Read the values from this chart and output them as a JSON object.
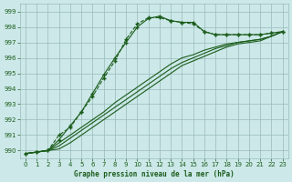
{
  "xlabel": "Graphe pression niveau de la mer (hPa)",
  "ylim": [
    989.5,
    999.5
  ],
  "xlim": [
    -0.5,
    23.5
  ],
  "yticks": [
    990,
    991,
    992,
    993,
    994,
    995,
    996,
    997,
    998,
    999
  ],
  "xticks": [
    0,
    1,
    2,
    3,
    4,
    5,
    6,
    7,
    8,
    9,
    10,
    11,
    12,
    13,
    14,
    15,
    16,
    17,
    18,
    19,
    20,
    21,
    22,
    23
  ],
  "bg_color": "#cce8e8",
  "grid_color": "#99bbbb",
  "line_color": "#1a5c1a",
  "line1_x": [
    0,
    1,
    2,
    3,
    4,
    5,
    6,
    7,
    8,
    9,
    10,
    11,
    12,
    13,
    14,
    15,
    16,
    17,
    18,
    19,
    20,
    21,
    22,
    23
  ],
  "line1_y": [
    989.8,
    989.9,
    990.0,
    990.7,
    991.6,
    992.5,
    993.7,
    994.9,
    996.0,
    997.0,
    998.0,
    998.55,
    998.7,
    998.4,
    998.3,
    998.3,
    997.7,
    997.5,
    997.5,
    997.5,
    997.5,
    997.5,
    997.6,
    997.7
  ],
  "line2_x": [
    0,
    1,
    2,
    3,
    4,
    5,
    6,
    7,
    8,
    9,
    10,
    11,
    12,
    13,
    14,
    15,
    16,
    17,
    18,
    19,
    20,
    21,
    22,
    23
  ],
  "line2_y": [
    989.8,
    989.9,
    990.0,
    991.0,
    991.5,
    992.5,
    993.5,
    994.7,
    995.8,
    997.2,
    998.2,
    998.6,
    998.6,
    998.4,
    998.3,
    998.2,
    997.7,
    997.5,
    997.5,
    997.5,
    997.5,
    997.5,
    997.6,
    997.7
  ],
  "line3_x": [
    0,
    1,
    2,
    3,
    4,
    5,
    6,
    7,
    8,
    9,
    10,
    11,
    12,
    13,
    14,
    15,
    16,
    17,
    18,
    19,
    20,
    21,
    22,
    23
  ],
  "line3_y": [
    989.8,
    989.9,
    990.0,
    990.5,
    991.0,
    991.5,
    992.0,
    992.5,
    993.1,
    993.6,
    994.1,
    994.6,
    995.1,
    995.6,
    996.0,
    996.2,
    996.5,
    996.7,
    996.9,
    997.0,
    997.1,
    997.2,
    997.4,
    997.7
  ],
  "line4_x": [
    0,
    1,
    2,
    3,
    4,
    5,
    6,
    7,
    8,
    9,
    10,
    11,
    12,
    13,
    14,
    15,
    16,
    17,
    18,
    19,
    20,
    21,
    22,
    23
  ],
  "line4_y": [
    989.8,
    989.9,
    990.0,
    990.3,
    990.8,
    991.3,
    991.8,
    992.3,
    992.8,
    993.3,
    993.8,
    994.3,
    994.8,
    995.3,
    995.7,
    996.0,
    996.3,
    996.6,
    996.8,
    997.0,
    997.1,
    997.2,
    997.4,
    997.7
  ],
  "line5_x": [
    0,
    1,
    2,
    3,
    4,
    5,
    6,
    7,
    8,
    9,
    10,
    11,
    12,
    13,
    14,
    15,
    16,
    17,
    18,
    19,
    20,
    21,
    22,
    23
  ],
  "line5_y": [
    989.8,
    989.9,
    990.0,
    990.1,
    990.5,
    991.0,
    991.5,
    992.0,
    992.5,
    993.0,
    993.5,
    994.0,
    994.5,
    995.0,
    995.5,
    995.8,
    996.1,
    996.4,
    996.7,
    996.9,
    997.0,
    997.1,
    997.4,
    997.7
  ]
}
